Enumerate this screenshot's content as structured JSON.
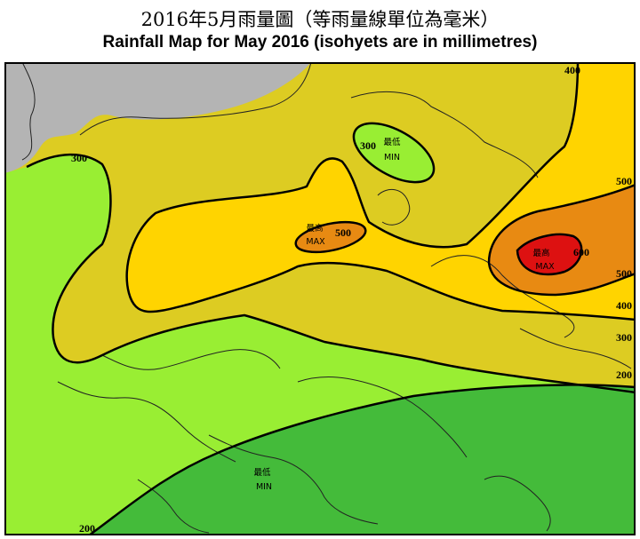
{
  "header": {
    "title_zh": "2016年5月雨量圖（等雨量線單位為毫米）",
    "title_en": "Rainfall Map for May 2016 (isohyets are in millimetres)"
  },
  "map": {
    "colors": {
      "below_200": "#44bb3a",
      "range_200_300": "#99ee33",
      "range_300_400": "#ddcc22",
      "range_400_500": "#ffd400",
      "range_500_600": "#e88a12",
      "above_600": "#dd1111",
      "land_outside": "#b4b4b4",
      "min_zone": "#99ee33"
    },
    "isohyet_labels": {
      "l300_west": "300",
      "l300_north": "300",
      "l400_ne": "400",
      "l500_east_top": "500",
      "l500_east": "500",
      "l400_east": "400",
      "l300_east": "300",
      "l200_east": "200",
      "l200_sw": "200",
      "l500_center": "500",
      "l600_east": "600"
    },
    "markers": {
      "min_north": {
        "zh": "最低",
        "en": "MIN"
      },
      "max_center": {
        "zh": "最高",
        "en": "MAX"
      },
      "max_east": {
        "zh": "最高",
        "en": "MAX"
      },
      "min_south": {
        "zh": "最低",
        "en": "MIN"
      }
    }
  }
}
